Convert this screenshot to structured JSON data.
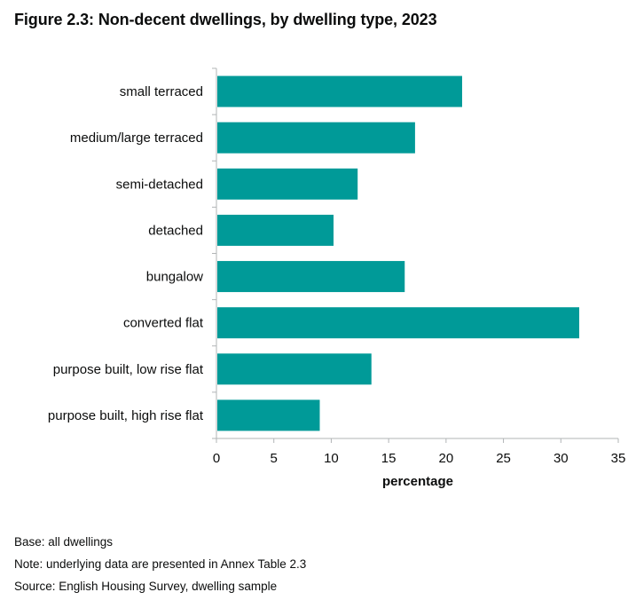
{
  "chart_data": {
    "type": "bar",
    "orientation": "horizontal",
    "title": "Figure 2.3: Non-decent dwellings, by dwelling type, 2023",
    "categories": [
      "small terraced",
      "medium/large terraced",
      "semi-detached",
      "detached",
      "bungalow",
      "converted flat",
      "purpose built, low rise flat",
      "purpose built, high rise flat"
    ],
    "values": [
      21.4,
      17.3,
      12.3,
      10.2,
      16.4,
      31.6,
      13.5,
      9.0
    ],
    "xlabel": "percentage",
    "ylabel": "",
    "xlim": [
      0,
      35
    ],
    "xticks": [
      0,
      5,
      10,
      15,
      20,
      25,
      30,
      35
    ],
    "grid": false,
    "bar_color": "#009a98",
    "axis_color": "#b1b4b6"
  },
  "notes": {
    "base": "Base: all dwellings",
    "note": "Note: underlying data are presented in Annex Table 2.3",
    "source": "Source: English Housing Survey, dwelling sample"
  }
}
